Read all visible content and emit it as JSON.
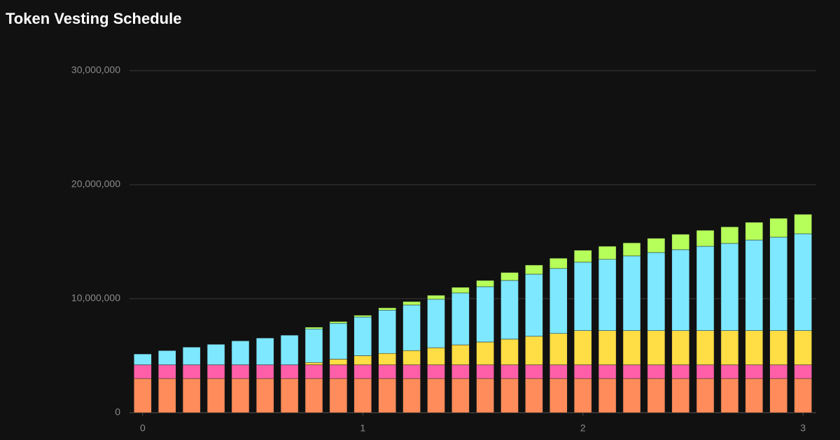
{
  "chart_data": {
    "type": "stacked_bar",
    "title": "Token Vesting Schedule",
    "x": [
      0,
      0.111,
      0.222,
      0.333,
      0.444,
      0.556,
      0.667,
      0.778,
      0.889,
      1,
      1.111,
      1.222,
      1.333,
      1.444,
      1.556,
      1.667,
      1.778,
      1.889,
      2,
      2.111,
      2.222,
      2.333,
      2.444,
      2.556,
      2.667,
      2.778,
      2.889,
      3
    ],
    "series": [
      {
        "color": "#ff8c5a",
        "values": [
          3000000,
          3000000,
          3000000,
          3000000,
          3000000,
          3000000,
          3000000,
          3000000,
          3000000,
          3000000,
          3000000,
          3000000,
          3000000,
          3000000,
          3000000,
          3000000,
          3000000,
          3000000,
          3000000,
          3000000,
          3000000,
          3000000,
          3000000,
          3000000,
          3000000,
          3000000,
          3000000,
          3000000
        ]
      },
      {
        "color": "#ff5fa8",
        "values": [
          1200000,
          1200000,
          1200000,
          1200000,
          1200000,
          1200000,
          1200000,
          1200000,
          1200000,
          1200000,
          1200000,
          1200000,
          1200000,
          1200000,
          1200000,
          1200000,
          1200000,
          1200000,
          1200000,
          1200000,
          1200000,
          1200000,
          1200000,
          1200000,
          1200000,
          1200000,
          1200000,
          1200000
        ]
      },
      {
        "color": "#ffdd44",
        "values": [
          0,
          0,
          0,
          0,
          0,
          0,
          0,
          200000,
          500000,
          800000,
          1000000,
          1250000,
          1500000,
          1750000,
          2000000,
          2250000,
          2500000,
          2750000,
          3000000,
          3000000,
          3000000,
          3000000,
          3000000,
          3000000,
          3000000,
          3000000,
          3000000,
          3000000
        ]
      },
      {
        "color": "#7de8ff",
        "values": [
          950000,
          1250000,
          1550000,
          1800000,
          2100000,
          2350000,
          2600000,
          2950000,
          3150000,
          3400000,
          3800000,
          4000000,
          4250000,
          4550000,
          4850000,
          5150000,
          5450000,
          5700000,
          6000000,
          6250000,
          6550000,
          6850000,
          7100000,
          7400000,
          7650000,
          7950000,
          8200000,
          8500000
        ]
      },
      {
        "color": "#b6ff5a",
        "values": [
          0,
          0,
          0,
          0,
          0,
          0,
          0,
          150000,
          150000,
          150000,
          200000,
          300000,
          350000,
          500000,
          550000,
          700000,
          800000,
          900000,
          1050000,
          1150000,
          1150000,
          1250000,
          1350000,
          1400000,
          1450000,
          1550000,
          1650000,
          1700000
        ]
      }
    ],
    "xlim": [
      -0.06,
      3.06
    ],
    "xticks": [
      0,
      1,
      2,
      3
    ],
    "ylim": [
      0,
      30000000
    ],
    "yticks": [
      0,
      {
        "value": 10000000,
        "label": "10,000,000"
      },
      {
        "value": 20000000,
        "label": "20,000,000"
      },
      {
        "value": 30000000,
        "label": "30,000,000"
      }
    ],
    "grid": true
  }
}
